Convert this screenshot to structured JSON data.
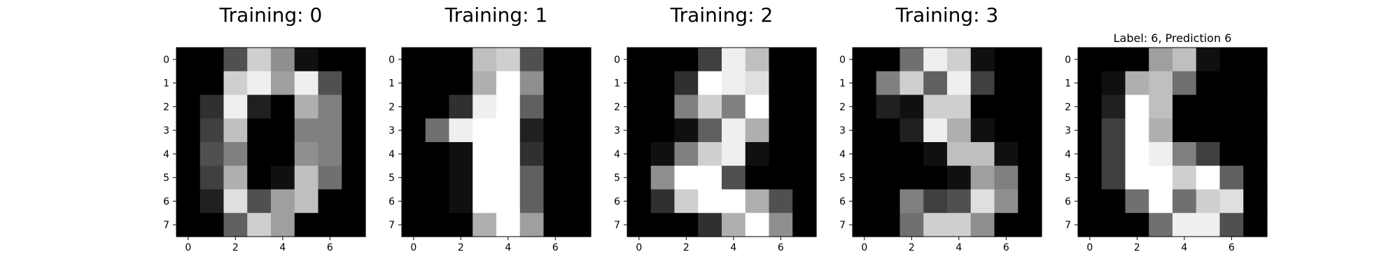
{
  "chart_data": [
    {
      "type": "heatmap",
      "title": "Training: 0",
      "colormap": "gray",
      "vmin": 0,
      "vmax": 16,
      "x_ticks": [
        0,
        2,
        4,
        6
      ],
      "y_ticks": [
        0,
        1,
        2,
        3,
        4,
        5,
        6,
        7
      ],
      "values": [
        [
          0,
          0,
          5,
          13,
          9,
          1,
          0,
          0
        ],
        [
          0,
          0,
          13,
          15,
          10,
          15,
          5,
          0
        ],
        [
          0,
          3,
          15,
          2,
          0,
          11,
          8,
          0
        ],
        [
          0,
          4,
          12,
          0,
          0,
          8,
          8,
          0
        ],
        [
          0,
          5,
          8,
          0,
          0,
          9,
          8,
          0
        ],
        [
          0,
          4,
          11,
          0,
          1,
          12,
          7,
          0
        ],
        [
          0,
          2,
          14,
          5,
          10,
          12,
          0,
          0
        ],
        [
          0,
          0,
          6,
          13,
          10,
          0,
          0,
          0
        ]
      ]
    },
    {
      "type": "heatmap",
      "title": "Training: 1",
      "colormap": "gray",
      "vmin": 0,
      "vmax": 16,
      "x_ticks": [
        0,
        2,
        4,
        6
      ],
      "y_ticks": [
        0,
        1,
        2,
        3,
        4,
        5,
        6,
        7
      ],
      "values": [
        [
          0,
          0,
          0,
          12,
          13,
          5,
          0,
          0
        ],
        [
          0,
          0,
          0,
          11,
          16,
          9,
          0,
          0
        ],
        [
          0,
          0,
          3,
          15,
          16,
          6,
          0,
          0
        ],
        [
          0,
          7,
          15,
          16,
          16,
          2,
          0,
          0
        ],
        [
          0,
          0,
          1,
          16,
          16,
          3,
          0,
          0
        ],
        [
          0,
          0,
          1,
          16,
          16,
          6,
          0,
          0
        ],
        [
          0,
          0,
          1,
          16,
          16,
          6,
          0,
          0
        ],
        [
          0,
          0,
          0,
          11,
          16,
          10,
          0,
          0
        ]
      ]
    },
    {
      "type": "heatmap",
      "title": "Training: 2",
      "colormap": "gray",
      "vmin": 0,
      "vmax": 16,
      "x_ticks": [
        0,
        2,
        4,
        6
      ],
      "y_ticks": [
        0,
        1,
        2,
        3,
        4,
        5,
        6,
        7
      ],
      "values": [
        [
          0,
          0,
          0,
          4,
          15,
          12,
          0,
          0
        ],
        [
          0,
          0,
          3,
          16,
          15,
          14,
          0,
          0
        ],
        [
          0,
          0,
          8,
          13,
          8,
          16,
          0,
          0
        ],
        [
          0,
          0,
          1,
          6,
          15,
          11,
          0,
          0
        ],
        [
          0,
          1,
          8,
          13,
          15,
          1,
          0,
          0
        ],
        [
          0,
          9,
          16,
          16,
          5,
          0,
          0,
          0
        ],
        [
          0,
          3,
          13,
          16,
          16,
          11,
          5,
          0
        ],
        [
          0,
          0,
          0,
          3,
          11,
          16,
          9,
          0
        ]
      ]
    },
    {
      "type": "heatmap",
      "title": "Training: 3",
      "colormap": "gray",
      "vmin": 0,
      "vmax": 16,
      "x_ticks": [
        0,
        2,
        4,
        6
      ],
      "y_ticks": [
        0,
        1,
        2,
        3,
        4,
        5,
        6,
        7
      ],
      "values": [
        [
          0,
          0,
          7,
          15,
          13,
          1,
          0,
          0
        ],
        [
          0,
          8,
          13,
          6,
          15,
          4,
          0,
          0
        ],
        [
          0,
          2,
          1,
          13,
          13,
          0,
          0,
          0
        ],
        [
          0,
          0,
          2,
          15,
          11,
          1,
          0,
          0
        ],
        [
          0,
          0,
          0,
          1,
          12,
          12,
          1,
          0
        ],
        [
          0,
          0,
          0,
          0,
          1,
          10,
          8,
          0
        ],
        [
          0,
          0,
          8,
          4,
          5,
          14,
          9,
          0
        ],
        [
          0,
          0,
          7,
          13,
          13,
          9,
          0,
          0
        ]
      ]
    },
    {
      "type": "heatmap",
      "title": "Label: 6, Prediction 6",
      "colormap": "gray",
      "vmin": 0,
      "vmax": 16,
      "x_ticks": [
        0,
        2,
        4,
        6
      ],
      "y_ticks": [
        0,
        1,
        2,
        3,
        4,
        5,
        6,
        7
      ],
      "values": [
        [
          0,
          0,
          0,
          10,
          12,
          1,
          0,
          0
        ],
        [
          0,
          1,
          11,
          12,
          7,
          0,
          0,
          0
        ],
        [
          0,
          2,
          16,
          12,
          0,
          0,
          0,
          0
        ],
        [
          0,
          4,
          16,
          11,
          0,
          0,
          0,
          0
        ],
        [
          0,
          4,
          16,
          15,
          8,
          4,
          0,
          0
        ],
        [
          0,
          4,
          16,
          16,
          13,
          16,
          6,
          0
        ],
        [
          0,
          0,
          7,
          16,
          7,
          13,
          14,
          0
        ],
        [
          0,
          0,
          0,
          7,
          15,
          15,
          5,
          0
        ]
      ]
    }
  ]
}
